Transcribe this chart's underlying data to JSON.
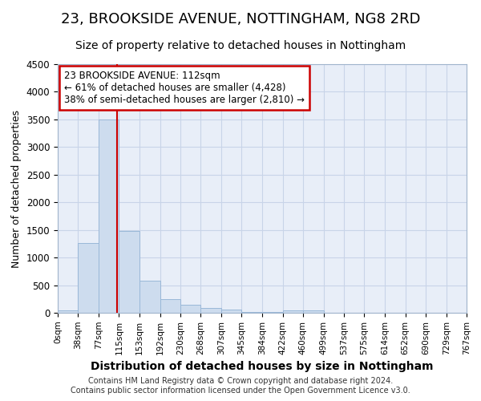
{
  "title": "23, BROOKSIDE AVENUE, NOTTINGHAM, NG8 2RD",
  "subtitle": "Size of property relative to detached houses in Nottingham",
  "xlabel": "Distribution of detached houses by size in Nottingham",
  "ylabel": "Number of detached properties",
  "footer1": "Contains HM Land Registry data © Crown copyright and database right 2024.",
  "footer2": "Contains public sector information licensed under the Open Government Licence v3.0.",
  "property_label": "23 BROOKSIDE AVENUE: 112sqm",
  "annotation_line1": "← 61% of detached houses are smaller (4,428)",
  "annotation_line2": "38% of semi-detached houses are larger (2,810) →",
  "bin_edges": [
    0,
    38,
    77,
    115,
    153,
    192,
    230,
    268,
    307,
    345,
    384,
    422,
    460,
    499,
    537,
    575,
    614,
    652,
    690,
    729,
    767
  ],
  "bar_heights": [
    40,
    1270,
    3500,
    1480,
    580,
    250,
    140,
    90,
    55,
    20,
    10,
    45,
    50,
    0,
    0,
    0,
    0,
    0,
    0,
    0
  ],
  "bar_color": "#cddcee",
  "bar_edge_color": "#9ab8d8",
  "vline_color": "#cc0000",
  "vline_x": 112,
  "annotation_box_color": "#cc0000",
  "grid_color": "#c8d4e8",
  "ylim": [
    0,
    4500
  ],
  "yticks": [
    0,
    500,
    1000,
    1500,
    2000,
    2500,
    3000,
    3500,
    4000,
    4500
  ],
  "bg_color": "#e8eef8",
  "title_fontsize": 13,
  "subtitle_fontsize": 10,
  "xlabel_fontsize": 10,
  "ylabel_fontsize": 9
}
